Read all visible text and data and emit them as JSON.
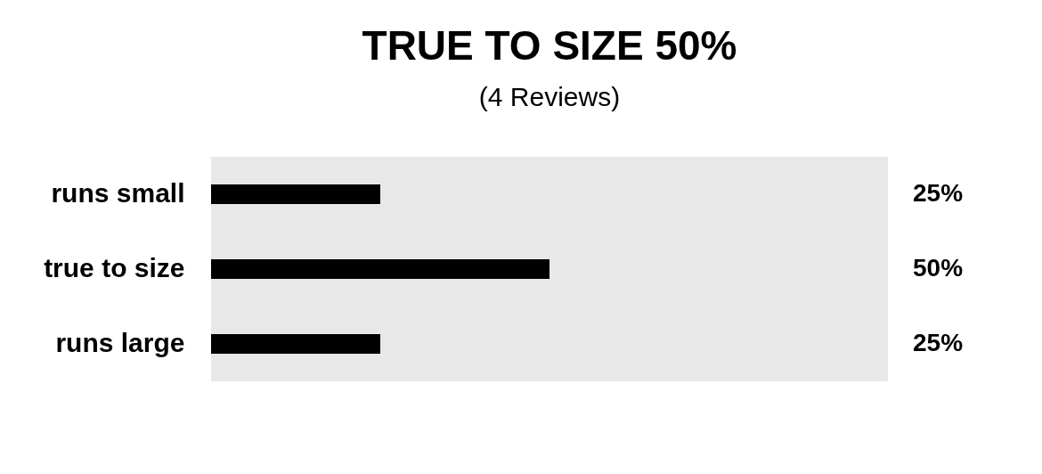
{
  "chart_data": {
    "type": "bar",
    "orientation": "horizontal",
    "title": "TRUE TO SIZE 50%",
    "subtitle": "(4 Reviews)",
    "categories": [
      "runs small",
      "true to size",
      "runs large"
    ],
    "values": [
      25,
      50,
      25
    ],
    "value_labels": [
      "25%",
      "50%",
      "25%"
    ],
    "color": "#000000",
    "xlim": [
      0,
      100
    ]
  }
}
